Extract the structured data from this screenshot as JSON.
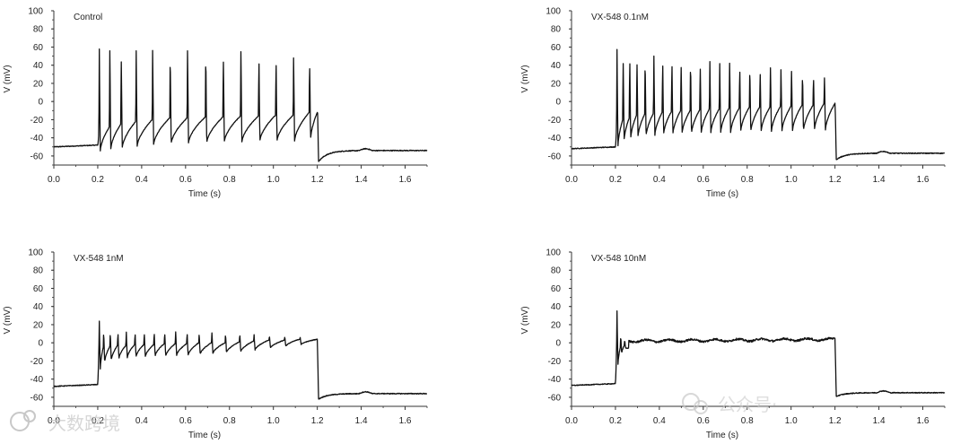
{
  "chart_data": [
    {
      "type": "line",
      "title": "Control",
      "xlabel": "Time (s)",
      "ylabel": "V (mV)",
      "xlim": [
        0.0,
        1.7
      ],
      "ylim": [
        -70,
        100
      ],
      "x_ticks": [
        "0.0",
        "0.2",
        "0.4",
        "0.6",
        "0.8",
        "1.0",
        "1.2",
        "1.4",
        "1.6"
      ],
      "y_ticks": [
        "-60",
        "-40",
        "-20",
        "0",
        "20",
        "40",
        "60",
        "80",
        "100"
      ],
      "waveform": {
        "baseline_pre": -50,
        "stim_start": 0.2,
        "stim_end": 1.2,
        "baseline_post": -54,
        "post_trough": -66,
        "spike_times": [
          0.205,
          0.253,
          0.305,
          0.373,
          0.448,
          0.528,
          0.607,
          0.69,
          0.77,
          0.85,
          0.932,
          1.01,
          1.09,
          1.163
        ],
        "spike_peaks": [
          58,
          56,
          56,
          56,
          56,
          56,
          56,
          56,
          55,
          55,
          52,
          50,
          48,
          46
        ],
        "troughs": [
          -55,
          -53,
          -52,
          -50,
          -48,
          -47,
          -46,
          -46,
          -45,
          -45,
          -44,
          -44,
          -44,
          -42
        ],
        "shoulder": [
          -35,
          -28,
          -25,
          -22,
          -20,
          -18,
          -18,
          -17,
          -17,
          -16,
          -16,
          -15,
          -15,
          -12
        ],
        "plateau_mean": null
      }
    },
    {
      "type": "line",
      "title": "VX-548 0.1nM",
      "xlabel": "Time (s)",
      "ylabel": "V (mV)",
      "xlim": [
        0.0,
        1.7
      ],
      "ylim": [
        -70,
        100
      ],
      "x_ticks": [
        "0.0",
        "0.2",
        "0.4",
        "0.6",
        "0.8",
        "1.0",
        "1.2",
        "1.4",
        "1.6"
      ],
      "y_ticks": [
        "-60",
        "-40",
        "-20",
        "0",
        "20",
        "40",
        "60",
        "80",
        "100"
      ],
      "waveform": {
        "baseline_pre": -52,
        "stim_start": 0.2,
        "stim_end": 1.2,
        "baseline_post": -57,
        "post_trough": -64,
        "spike_times": [
          0.205,
          0.233,
          0.263,
          0.296,
          0.333,
          0.373,
          0.413,
          0.455,
          0.497,
          0.54,
          0.584,
          0.628,
          0.673,
          0.718,
          0.764,
          0.81,
          0.857,
          0.904,
          0.952,
          1.0,
          1.05,
          1.1,
          1.15
        ],
        "spike_peaks": [
          57,
          53,
          52,
          51,
          50,
          50,
          49,
          48,
          47,
          46,
          45,
          44,
          42,
          42,
          41,
          40,
          38,
          37,
          35,
          33,
          32,
          30,
          26
        ],
        "troughs": [
          -50,
          -44,
          -42,
          -40,
          -39,
          -38,
          -37,
          -37,
          -36,
          -36,
          -36,
          -35,
          -35,
          -35,
          -34,
          -34,
          -34,
          -34,
          -33,
          -33,
          -33,
          -32,
          -32
        ],
        "shoulder": [
          -30,
          -20,
          -18,
          -15,
          -14,
          -13,
          -12,
          -11,
          -10,
          -10,
          -9,
          -8,
          -8,
          -7,
          -7,
          -6,
          -6,
          -6,
          -5,
          -5,
          -4,
          -4,
          -2
        ],
        "plateau_mean": null
      }
    },
    {
      "type": "line",
      "title": "VX-548 1nM",
      "xlabel": "Time (s)",
      "ylabel": "V (mV)",
      "xlim": [
        0.0,
        1.7
      ],
      "ylim": [
        -70,
        100
      ],
      "x_ticks": [
        "0.0",
        "0.2",
        "0.4",
        "0.6",
        "0.8",
        "1.0",
        "1.2",
        "1.4",
        "1.6"
      ],
      "y_ticks": [
        "-60",
        "-40",
        "-20",
        "0",
        "20",
        "40",
        "60",
        "80",
        "100"
      ],
      "waveform": {
        "baseline_pre": -48,
        "stim_start": 0.2,
        "stim_end": 1.2,
        "baseline_post": -56,
        "post_trough": -62,
        "spike_times": [
          0.205,
          0.225,
          0.255,
          0.29,
          0.328,
          0.368,
          0.41,
          0.455,
          0.503,
          0.553,
          0.605,
          0.66,
          0.718,
          0.78,
          0.845,
          0.91,
          0.98,
          1.05,
          1.12
        ],
        "spike_peaks": [
          24,
          13,
          12,
          12,
          12,
          12,
          12,
          12,
          12,
          12,
          12,
          11,
          11,
          10,
          10,
          9,
          8,
          7,
          6
        ],
        "troughs": [
          -30,
          -22,
          -20,
          -18,
          -17,
          -16,
          -16,
          -15,
          -15,
          -14,
          -14,
          -13,
          -12,
          -11,
          -10,
          -8,
          -6,
          -4,
          -2
        ],
        "shoulder": [
          -10,
          -5,
          -4,
          -3,
          -3,
          -2,
          -2,
          -2,
          -1,
          -1,
          -1,
          0,
          0,
          0,
          1,
          2,
          3,
          3,
          4
        ],
        "plateau_mean": null
      }
    },
    {
      "type": "line",
      "title": "VX-548 10nM",
      "xlabel": "Time (s)",
      "ylabel": "V (mV)",
      "xlim": [
        0.0,
        1.7
      ],
      "ylim": [
        -70,
        100
      ],
      "x_ticks": [
        "0.0",
        "0.2",
        "0.4",
        "0.6",
        "0.8",
        "1.0",
        "1.2",
        "1.4",
        "1.6"
      ],
      "y_ticks": [
        "-60",
        "-40",
        "-20",
        "0",
        "20",
        "40",
        "60",
        "80",
        "100"
      ],
      "waveform": {
        "baseline_pre": -47,
        "stim_start": 0.2,
        "stim_end": 1.2,
        "baseline_post": -55,
        "post_trough": -59,
        "spike_times": [
          0.205,
          0.222,
          0.24
        ],
        "spike_peaks": [
          35,
          8,
          3
        ],
        "troughs": [
          -25,
          -12,
          -6
        ],
        "shoulder": [
          -10,
          -5,
          -3
        ],
        "plateau_mean": 2
      }
    }
  ],
  "watermarks": {
    "left": "大数跨境",
    "right": "公众号·"
  },
  "colors": {
    "trace": "#111111",
    "axis": "#333333",
    "watermark": "#c8c8c8"
  }
}
